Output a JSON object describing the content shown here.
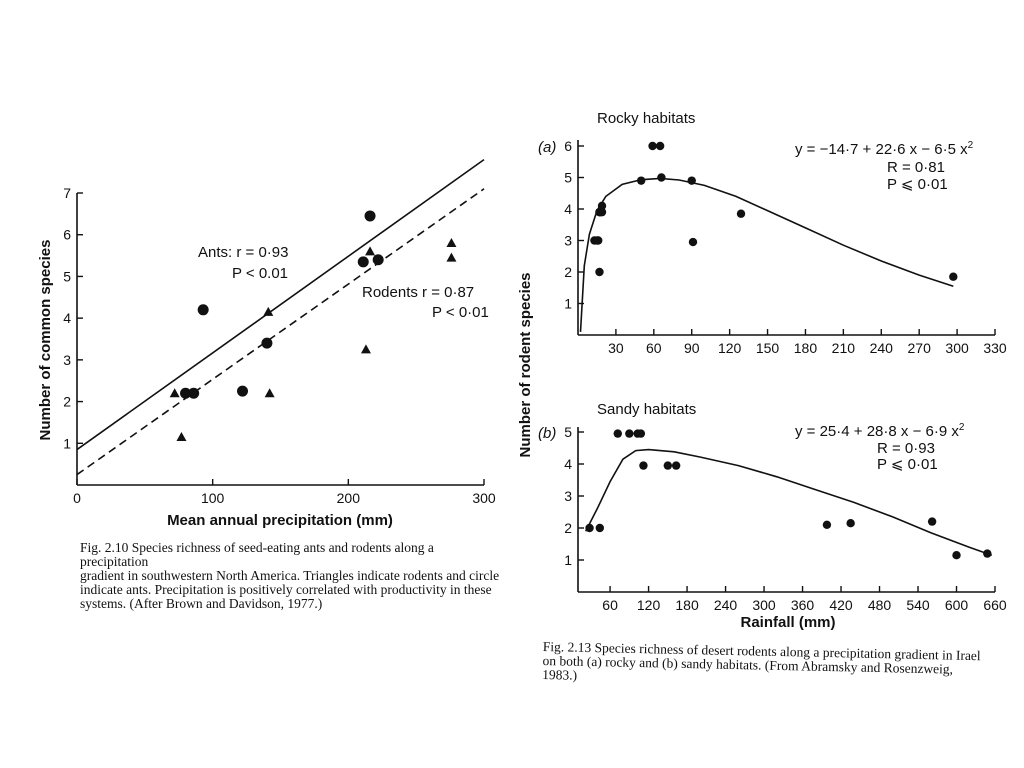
{
  "chart_data": [
    {
      "type": "scatter",
      "xlabel": "Mean annual precipitation (mm)",
      "ylabel": "Number of common species",
      "xlim": [
        0,
        300
      ],
      "ylim": [
        0,
        7
      ],
      "xticks": [
        "0",
        "100",
        "200",
        "300"
      ],
      "yticks": [
        "1",
        "2",
        "3",
        "4",
        "5",
        "6",
        "7"
      ],
      "series": [
        {
          "name": "Ants",
          "marker": "circle",
          "x": [
            80,
            86,
            93,
            122,
            140,
            211,
            216,
            222
          ],
          "y": [
            2.2,
            2.2,
            4.2,
            2.25,
            3.4,
            5.35,
            6.45,
            5.4
          ]
        },
        {
          "name": "Rodents",
          "marker": "triangle",
          "x": [
            72,
            77,
            141,
            142,
            213,
            216,
            276,
            276
          ],
          "y": [
            2.2,
            1.15,
            4.15,
            2.2,
            3.25,
            5.6,
            5.8,
            5.45
          ]
        }
      ],
      "fits": [
        {
          "series": "Ants",
          "style": "solid",
          "x": [
            0,
            300
          ],
          "y": [
            0.85,
            7.8
          ]
        },
        {
          "series": "Rodents",
          "style": "dashed",
          "x": [
            0,
            300
          ],
          "y": [
            0.25,
            7.1
          ]
        }
      ],
      "annotations": [
        {
          "line1": "Ants: r = 0·93",
          "line2": "P < 0.01"
        },
        {
          "line1": "Rodents  r = 0·87",
          "line2": "P < 0·01"
        }
      ]
    },
    {
      "type": "scatter",
      "panel": "(a)",
      "title": "Rocky habitats",
      "ylabel": "Number of rodent species",
      "xlim": [
        0,
        330
      ],
      "ylim": [
        0,
        6
      ],
      "xticks": [
        "30",
        "60",
        "90",
        "120",
        "150",
        "180",
        "210",
        "240",
        "270",
        "300",
        "330"
      ],
      "yticks": [
        "1",
        "2",
        "3",
        "4",
        "5",
        "6"
      ],
      "x": [
        13,
        15,
        16,
        17,
        17,
        17,
        18,
        19,
        19,
        50,
        59,
        65,
        66,
        90,
        91,
        129,
        297
      ],
      "y": [
        3,
        3,
        3,
        3.9,
        3.9,
        2,
        3.9,
        4.1,
        3.9,
        4.9,
        6,
        6,
        5,
        4.9,
        2.95,
        3.85,
        1.85
      ],
      "fit": {
        "style": "solid",
        "points": [
          [
            2,
            0.1
          ],
          [
            5,
            2.2
          ],
          [
            9,
            3.2
          ],
          [
            15,
            3.95
          ],
          [
            22,
            4.4
          ],
          [
            35,
            4.78
          ],
          [
            50,
            4.93
          ],
          [
            65,
            4.97
          ],
          [
            80,
            4.92
          ],
          [
            100,
            4.75
          ],
          [
            125,
            4.4
          ],
          [
            150,
            3.95
          ],
          [
            180,
            3.4
          ],
          [
            210,
            2.85
          ],
          [
            240,
            2.35
          ],
          [
            270,
            1.9
          ],
          [
            297,
            1.55
          ]
        ]
      },
      "annotation": {
        "eq": "y = −14·7 + 22·6 x − 6·5 x",
        "sup": "2",
        "r": "R = 0·81",
        "p": "P ⩽ 0·01"
      }
    },
    {
      "type": "scatter",
      "panel": "(b)",
      "title": "Sandy habitats",
      "xlabel": "Rainfall (mm)",
      "xlim": [
        10,
        660
      ],
      "ylim": [
        0,
        5
      ],
      "xticks": [
        "60",
        "120",
        "180",
        "240",
        "300",
        "360",
        "420",
        "480",
        "540",
        "600",
        "660"
      ],
      "yticks": [
        "1",
        "2",
        "3",
        "4",
        "5"
      ],
      "x": [
        28,
        44,
        72,
        90,
        103,
        108,
        112,
        150,
        163,
        398,
        435,
        562,
        600,
        648
      ],
      "y": [
        2,
        2,
        4.95,
        4.95,
        4.95,
        4.95,
        3.95,
        3.95,
        3.95,
        2.1,
        2.15,
        2.2,
        1.15,
        1.2
      ],
      "fit": {
        "style": "solid",
        "points": [
          [
            22,
            1.9
          ],
          [
            40,
            2.6
          ],
          [
            60,
            3.45
          ],
          [
            80,
            4.15
          ],
          [
            100,
            4.42
          ],
          [
            120,
            4.45
          ],
          [
            160,
            4.38
          ],
          [
            200,
            4.22
          ],
          [
            260,
            3.95
          ],
          [
            320,
            3.6
          ],
          [
            380,
            3.2
          ],
          [
            440,
            2.8
          ],
          [
            500,
            2.35
          ],
          [
            560,
            1.85
          ],
          [
            620,
            1.4
          ],
          [
            655,
            1.15
          ]
        ]
      },
      "annotation": {
        "eq": "y = 25·4 + 28·8 x − 6·9 x",
        "sup": "2",
        "r": "R = 0·93",
        "p": "P ⩽ 0·01"
      }
    }
  ],
  "captions": {
    "fig210": {
      "lines": [
        "Fig. 2.10  Species richness of seed-eating ants and rodents along a precipitation",
        "gradient in southwestern North America. Triangles indicate rodents and circle",
        "indicate ants. Precipitation is positively correlated with productivity in these",
        "systems. (After Brown and Davidson, 1977.)"
      ]
    },
    "fig213": {
      "lines": [
        "Fig. 2.13  Species richness of desert rodents along a precipitation gradient in Irael",
        "on both (a) rocky and (b) sandy habitats. (From Abramsky and Rosenzweig,",
        "1983.)"
      ]
    }
  }
}
